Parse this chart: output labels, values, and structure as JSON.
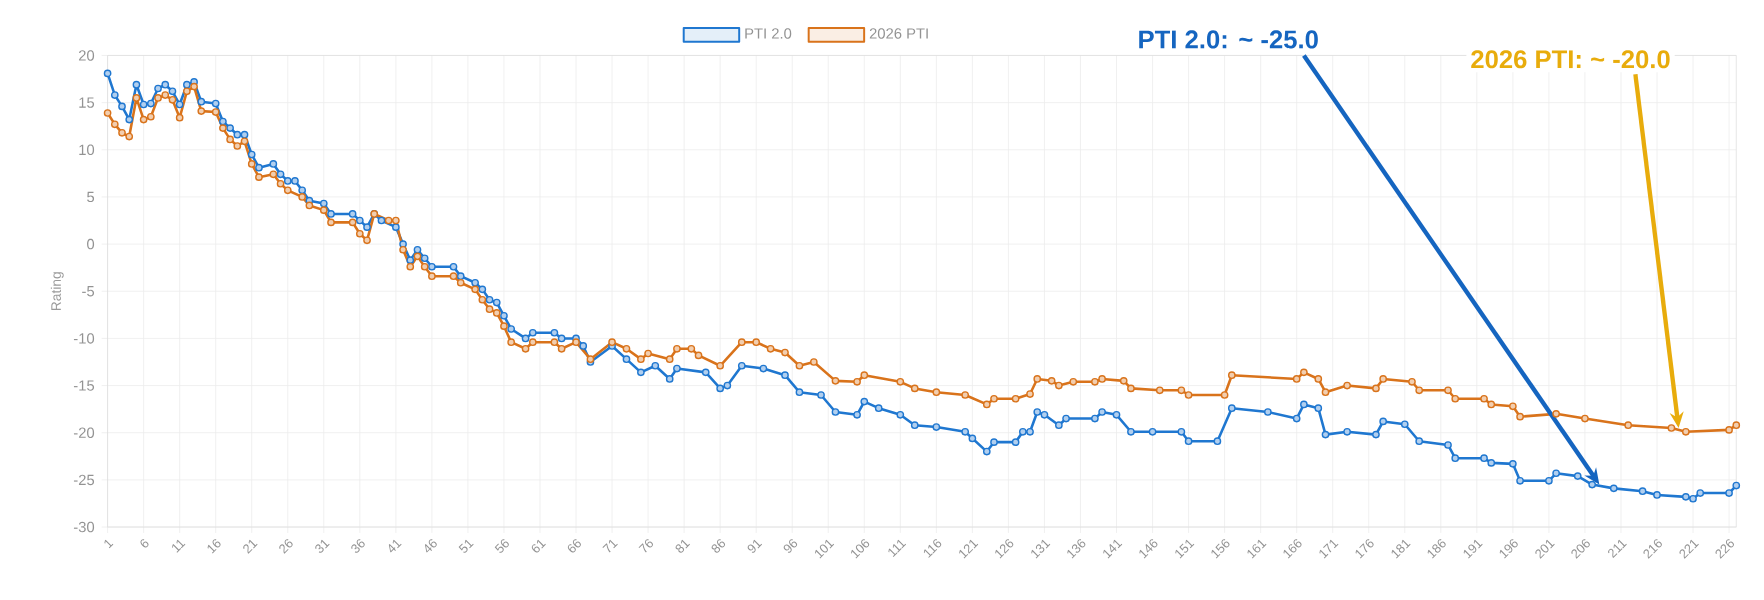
{
  "chart_data": {
    "type": "line",
    "ylabel": "Rating",
    "xlim": [
      1,
      227
    ],
    "ylim": [
      -30,
      20
    ],
    "xticks": [
      1,
      6,
      11,
      16,
      21,
      26,
      31,
      36,
      41,
      46,
      51,
      56,
      61,
      66,
      71,
      76,
      81,
      86,
      91,
      96,
      101,
      106,
      111,
      116,
      121,
      126,
      131,
      136,
      141,
      146,
      151,
      156,
      161,
      166,
      171,
      176,
      181,
      186,
      191,
      196,
      201,
      206,
      211,
      216,
      221,
      226
    ],
    "yticks": [
      -30,
      -25,
      -20,
      -15,
      -10,
      -5,
      0,
      5,
      10,
      15,
      20
    ],
    "grid": true,
    "legend": "top",
    "marker": "circle",
    "line_style": "solid",
    "series": [
      {
        "name": "PTI 2.0",
        "color": "#1f77d0",
        "x": [
          1,
          2,
          3,
          4,
          5,
          6,
          7,
          8,
          9,
          10,
          11,
          12,
          13,
          14,
          16,
          17,
          18,
          19,
          20,
          21,
          22,
          24,
          25,
          26,
          27,
          28,
          29,
          31,
          32,
          35,
          36,
          37,
          38,
          39,
          41,
          42,
          43,
          44,
          45,
          46,
          49,
          50,
          52,
          53,
          54,
          55,
          56,
          57,
          59,
          60,
          63,
          64,
          66,
          67,
          68,
          71,
          73,
          75,
          77,
          79,
          80,
          84,
          86,
          87,
          89,
          92,
          95,
          97,
          100,
          102,
          105,
          106,
          108,
          111,
          113,
          116,
          120,
          121,
          123,
          124,
          127,
          128,
          129,
          130,
          131,
          133,
          134,
          138,
          139,
          141,
          143,
          146,
          150,
          151,
          155,
          157,
          162,
          166,
          167,
          169,
          170,
          173,
          177,
          178,
          181,
          183,
          187,
          188,
          192,
          193,
          196,
          197,
          201,
          202,
          205,
          207,
          210,
          214,
          216,
          220,
          221,
          222,
          226,
          227
        ],
        "values": [
          18.1,
          15.8,
          14.6,
          13.2,
          16.9,
          14.8,
          14.9,
          16.5,
          16.9,
          16.2,
          14.8,
          16.9,
          17.2,
          15.1,
          14.9,
          13,
          12.3,
          11.6,
          11.6,
          9.5,
          8.1,
          8.5,
          7.4,
          6.7,
          6.7,
          5.7,
          4.6,
          4.3,
          3.2,
          3.2,
          2.5,
          1.8,
          3.2,
          2.5,
          1.8,
          0,
          -1.7,
          -0.6,
          -1.5,
          -2.4,
          -2.4,
          -3.4,
          -4.1,
          -4.8,
          -5.9,
          -6.2,
          -7.6,
          -9,
          -10,
          -9.4,
          -9.4,
          -10,
          -10,
          -10.8,
          -12.5,
          -10.8,
          -12.2,
          -13.6,
          -12.9,
          -14.3,
          -13.2,
          -13.6,
          -15.3,
          -15,
          -12.9,
          -13.2,
          -13.9,
          -15.7,
          -16,
          -17.8,
          -18.1,
          -16.7,
          -17.4,
          -18.1,
          -19.2,
          -19.4,
          -19.9,
          -20.6,
          -22,
          -21,
          -21,
          -19.9,
          -19.9,
          -17.8,
          -18.1,
          -19.2,
          -18.5,
          -18.5,
          -17.8,
          -18.1,
          -19.9,
          -19.9,
          -19.9,
          -20.9,
          -20.9,
          -17.4,
          -17.8,
          -18.5,
          -17,
          -17.4,
          -20.2,
          -19.9,
          -20.2,
          -18.8,
          -19.1,
          -20.9,
          -21.3,
          -22.7,
          -22.7,
          -23.2,
          -23.3,
          -25.1,
          -25.1,
          -24.3,
          -24.6,
          -25.5,
          -25.9,
          -26.2,
          -26.6,
          -26.8,
          -27,
          -26.4,
          -26.4,
          -25.6
        ]
      },
      {
        "name": "2026 PTI",
        "color": "#d9731b",
        "x": [
          1,
          2,
          3,
          4,
          5,
          6,
          7,
          8,
          9,
          10,
          11,
          12,
          13,
          14,
          16,
          17,
          18,
          19,
          20,
          21,
          22,
          24,
          25,
          26,
          28,
          29,
          31,
          32,
          35,
          36,
          37,
          38,
          40,
          41,
          42,
          43,
          44,
          45,
          46,
          49,
          50,
          52,
          53,
          54,
          55,
          56,
          57,
          59,
          60,
          63,
          64,
          66,
          68,
          71,
          73,
          75,
          76,
          79,
          80,
          82,
          83,
          86,
          89,
          91,
          93,
          95,
          97,
          99,
          102,
          105,
          106,
          111,
          113,
          116,
          120,
          123,
          124,
          127,
          129,
          130,
          132,
          133,
          135,
          138,
          139,
          142,
          143,
          147,
          150,
          151,
          156,
          157,
          166,
          167,
          169,
          170,
          173,
          177,
          178,
          182,
          183,
          187,
          188,
          192,
          193,
          196,
          197,
          202,
          206,
          212,
          218,
          220,
          226,
          227
        ],
        "values": [
          13.9,
          12.7,
          11.8,
          11.4,
          15.5,
          13.2,
          13.5,
          15.5,
          15.8,
          15.3,
          13.4,
          16.2,
          16.7,
          14.1,
          14,
          12.3,
          11.1,
          10.4,
          10.9,
          8.5,
          7.1,
          7.4,
          6.4,
          5.7,
          5,
          4.1,
          3.6,
          2.3,
          2.3,
          1.1,
          0.4,
          3.2,
          2.5,
          2.5,
          -0.6,
          -2.4,
          -1.3,
          -2.4,
          -3.4,
          -3.4,
          -4.1,
          -4.8,
          -5.9,
          -6.9,
          -7.3,
          -8.7,
          -10.4,
          -11.1,
          -10.4,
          -10.4,
          -11.1,
          -10.4,
          -12.2,
          -10.4,
          -11.1,
          -12.2,
          -11.6,
          -12.2,
          -11.1,
          -11.1,
          -11.8,
          -12.9,
          -10.4,
          -10.4,
          -11.1,
          -11.5,
          -12.9,
          -12.5,
          -14.5,
          -14.6,
          -13.9,
          -14.6,
          -15.3,
          -15.7,
          -16,
          -17,
          -16.4,
          -16.4,
          -15.9,
          -14.3,
          -14.5,
          -15,
          -14.6,
          -14.6,
          -14.3,
          -14.5,
          -15.3,
          -15.5,
          -15.5,
          -16,
          -16,
          -13.9,
          -14.3,
          -13.6,
          -14.3,
          -15.7,
          -15,
          -15.3,
          -14.3,
          -14.6,
          -15.5,
          -15.5,
          -16.4,
          -16.4,
          -17,
          -17.2,
          -18.3,
          -18,
          -18.5,
          -19.2,
          -19.5,
          -19.9,
          -19.7,
          -19.2
        ]
      }
    ],
    "annotations": [
      {
        "text": "PTI 2.0: ~ -25.0",
        "x": 208,
        "y": -25.5
      },
      {
        "text": "2026 PTI: ~ -20.0",
        "x": 219,
        "y": -19.5
      }
    ]
  }
}
